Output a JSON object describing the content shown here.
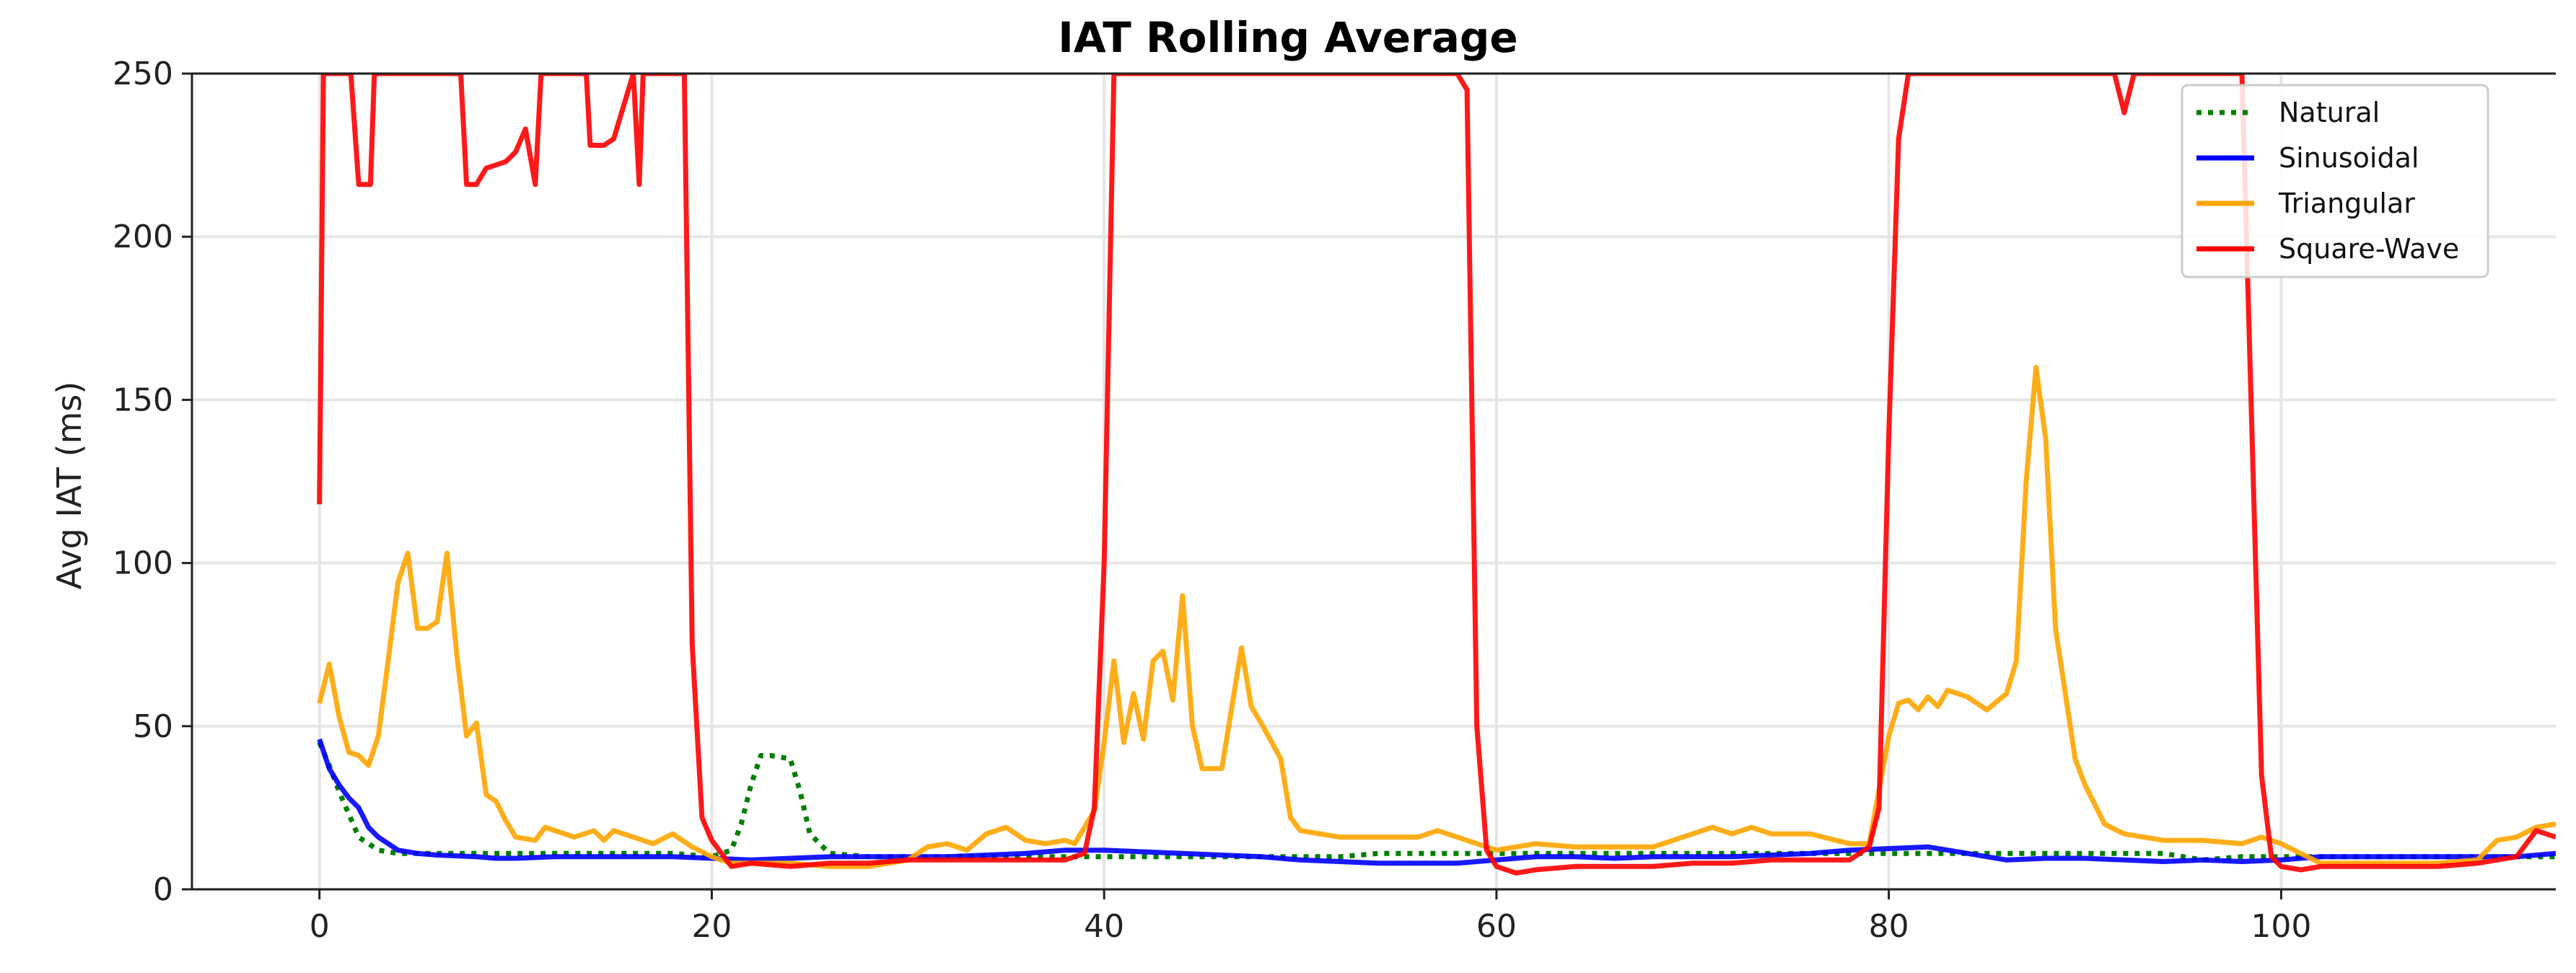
{
  "chart_data": {
    "type": "line",
    "title": "IAT Rolling Average",
    "xlabel": "",
    "ylabel": "Avg IAT (ms)",
    "xlim": [
      -6.5,
      114
    ],
    "ylim": [
      0,
      250
    ],
    "x_ticks": [
      0,
      20,
      40,
      60,
      80,
      100
    ],
    "y_ticks": [
      0,
      50,
      100,
      150,
      200,
      250
    ],
    "grid": true,
    "legend_position": "top-right",
    "series": [
      {
        "name": "Natural",
        "color": "#008000",
        "style": "dotted",
        "points": [
          [
            0,
            45
          ],
          [
            0.5,
            38
          ],
          [
            1,
            30
          ],
          [
            1.5,
            23
          ],
          [
            2,
            16
          ],
          [
            3,
            12
          ],
          [
            4,
            11
          ],
          [
            6,
            11
          ],
          [
            8,
            11
          ],
          [
            10,
            11
          ],
          [
            12,
            11
          ],
          [
            14,
            11
          ],
          [
            16,
            11
          ],
          [
            18,
            11
          ],
          [
            20,
            10
          ],
          [
            21,
            12
          ],
          [
            21.5,
            20
          ],
          [
            22,
            32
          ],
          [
            22.5,
            41
          ],
          [
            23,
            41
          ],
          [
            24,
            40
          ],
          [
            24.5,
            30
          ],
          [
            25,
            17
          ],
          [
            26,
            11
          ],
          [
            28,
            10
          ],
          [
            30,
            10
          ],
          [
            32,
            10
          ],
          [
            34,
            10
          ],
          [
            36,
            10
          ],
          [
            38,
            10
          ],
          [
            40,
            10
          ],
          [
            42,
            10
          ],
          [
            44,
            10
          ],
          [
            46,
            10
          ],
          [
            48,
            10
          ],
          [
            50,
            10
          ],
          [
            52,
            10
          ],
          [
            54,
            11
          ],
          [
            56,
            11
          ],
          [
            58,
            11
          ],
          [
            60,
            11
          ],
          [
            62,
            11
          ],
          [
            64,
            11
          ],
          [
            66,
            11
          ],
          [
            68,
            11
          ],
          [
            70,
            11
          ],
          [
            72,
            11
          ],
          [
            74,
            11
          ],
          [
            76,
            11
          ],
          [
            78,
            11
          ],
          [
            80,
            11
          ],
          [
            82,
            11
          ],
          [
            84,
            11
          ],
          [
            86,
            11
          ],
          [
            88,
            11
          ],
          [
            90,
            11
          ],
          [
            92,
            11
          ],
          [
            94,
            11
          ],
          [
            96,
            9
          ],
          [
            98,
            10
          ],
          [
            100,
            10
          ],
          [
            102,
            10
          ],
          [
            104,
            10
          ],
          [
            106,
            10
          ],
          [
            108,
            10
          ],
          [
            110,
            10
          ],
          [
            112,
            10
          ],
          [
            114,
            10
          ]
        ]
      },
      {
        "name": "Sinusoidal",
        "color": "#0000ff",
        "style": "solid",
        "points": [
          [
            0,
            46
          ],
          [
            0.5,
            37
          ],
          [
            1,
            32
          ],
          [
            1.5,
            28
          ],
          [
            2,
            25
          ],
          [
            2.5,
            19
          ],
          [
            3,
            16
          ],
          [
            4,
            12
          ],
          [
            5,
            11
          ],
          [
            6,
            10.5
          ],
          [
            8,
            10
          ],
          [
            9,
            9.5
          ],
          [
            10,
            9.5
          ],
          [
            12,
            10
          ],
          [
            14,
            10
          ],
          [
            16,
            10
          ],
          [
            18,
            10
          ],
          [
            20,
            9.5
          ],
          [
            22,
            9
          ],
          [
            24,
            9.5
          ],
          [
            26,
            10
          ],
          [
            28,
            10
          ],
          [
            30,
            10
          ],
          [
            32,
            10
          ],
          [
            34,
            10.5
          ],
          [
            36,
            11
          ],
          [
            38,
            12
          ],
          [
            40,
            12
          ],
          [
            42,
            11.5
          ],
          [
            44,
            11
          ],
          [
            46,
            10.5
          ],
          [
            48,
            10
          ],
          [
            50,
            9
          ],
          [
            52,
            8.5
          ],
          [
            54,
            8
          ],
          [
            56,
            8
          ],
          [
            58,
            8
          ],
          [
            60,
            9
          ],
          [
            62,
            10
          ],
          [
            64,
            10
          ],
          [
            66,
            9.5
          ],
          [
            68,
            10
          ],
          [
            70,
            10
          ],
          [
            72,
            10
          ],
          [
            74,
            10.5
          ],
          [
            76,
            11
          ],
          [
            78,
            12
          ],
          [
            80,
            12.5
          ],
          [
            82,
            13
          ],
          [
            84,
            11
          ],
          [
            86,
            9
          ],
          [
            88,
            9.5
          ],
          [
            90,
            9.5
          ],
          [
            92,
            9
          ],
          [
            94,
            8.5
          ],
          [
            96,
            9
          ],
          [
            98,
            8.5
          ],
          [
            100,
            9
          ],
          [
            102,
            10
          ],
          [
            104,
            10
          ],
          [
            106,
            10
          ],
          [
            108,
            10
          ],
          [
            110,
            10
          ],
          [
            112,
            10
          ],
          [
            114,
            11
          ]
        ]
      },
      {
        "name": "Triangular",
        "color": "#ffa500",
        "style": "solid",
        "points": [
          [
            0,
            57
          ],
          [
            0.5,
            69
          ],
          [
            1,
            53
          ],
          [
            1.5,
            42
          ],
          [
            2,
            41
          ],
          [
            2.5,
            38
          ],
          [
            3,
            47
          ],
          [
            3.5,
            70
          ],
          [
            4,
            94
          ],
          [
            4.5,
            103
          ],
          [
            5,
            80
          ],
          [
            5.5,
            80
          ],
          [
            6,
            82
          ],
          [
            6.5,
            103
          ],
          [
            7,
            72
          ],
          [
            7.5,
            47
          ],
          [
            8,
            51
          ],
          [
            8.5,
            29
          ],
          [
            9,
            27
          ],
          [
            9.5,
            21
          ],
          [
            10,
            16
          ],
          [
            11,
            15
          ],
          [
            11.5,
            19
          ],
          [
            12,
            18
          ],
          [
            13,
            16
          ],
          [
            14,
            18
          ],
          [
            14.5,
            15
          ],
          [
            15,
            18
          ],
          [
            16,
            16
          ],
          [
            16.5,
            15
          ],
          [
            17,
            14
          ],
          [
            18,
            17
          ],
          [
            19,
            13
          ],
          [
            20,
            10
          ],
          [
            21,
            8
          ],
          [
            22,
            8
          ],
          [
            24,
            8
          ],
          [
            26,
            7
          ],
          [
            28,
            7
          ],
          [
            30,
            9
          ],
          [
            31,
            13
          ],
          [
            32,
            14
          ],
          [
            33,
            12
          ],
          [
            34,
            17
          ],
          [
            35,
            19
          ],
          [
            36,
            15
          ],
          [
            37,
            14
          ],
          [
            38,
            15
          ],
          [
            38.5,
            14
          ],
          [
            39,
            19
          ],
          [
            39.5,
            24
          ],
          [
            40,
            45
          ],
          [
            40.5,
            70
          ],
          [
            41,
            45
          ],
          [
            41.5,
            60
          ],
          [
            42,
            46
          ],
          [
            42.5,
            70
          ],
          [
            43,
            73
          ],
          [
            43.5,
            58
          ],
          [
            44,
            90
          ],
          [
            44.5,
            50
          ],
          [
            45,
            37
          ],
          [
            46,
            37
          ],
          [
            47,
            74
          ],
          [
            47.5,
            56
          ],
          [
            48,
            51
          ],
          [
            49,
            40
          ],
          [
            49.5,
            22
          ],
          [
            50,
            18
          ],
          [
            52,
            16
          ],
          [
            54,
            16
          ],
          [
            56,
            16
          ],
          [
            57,
            18
          ],
          [
            58,
            16
          ],
          [
            59,
            14
          ],
          [
            60,
            12
          ],
          [
            62,
            14
          ],
          [
            64,
            13
          ],
          [
            66,
            13
          ],
          [
            68,
            13
          ],
          [
            70,
            17
          ],
          [
            71,
            19
          ],
          [
            72,
            17
          ],
          [
            73,
            19
          ],
          [
            74,
            17
          ],
          [
            76,
            17
          ],
          [
            78,
            14
          ],
          [
            79,
            14
          ],
          [
            80,
            47
          ],
          [
            80.5,
            57
          ],
          [
            81,
            58
          ],
          [
            81.5,
            55
          ],
          [
            82,
            59
          ],
          [
            82.5,
            56
          ],
          [
            83,
            61
          ],
          [
            84,
            59
          ],
          [
            85,
            55
          ],
          [
            86,
            60
          ],
          [
            86.5,
            70
          ],
          [
            87,
            125
          ],
          [
            87.5,
            160
          ],
          [
            88,
            138
          ],
          [
            88.5,
            80
          ],
          [
            89,
            60
          ],
          [
            89.5,
            40
          ],
          [
            90,
            32
          ],
          [
            91,
            20
          ],
          [
            92,
            17
          ],
          [
            93,
            16
          ],
          [
            94,
            15
          ],
          [
            96,
            15
          ],
          [
            98,
            14
          ],
          [
            99,
            16
          ],
          [
            100,
            14
          ],
          [
            102,
            8
          ],
          [
            104,
            8
          ],
          [
            106,
            8
          ],
          [
            108,
            8
          ],
          [
            110,
            9
          ],
          [
            111,
            15
          ],
          [
            112,
            16
          ],
          [
            113,
            19
          ],
          [
            114,
            20
          ]
        ]
      },
      {
        "name": "Square-Wave",
        "color": "#ff0000",
        "style": "solid",
        "points": [
          [
            0,
            118
          ],
          [
            0.2,
            250
          ],
          [
            1.6,
            250
          ],
          [
            2,
            216
          ],
          [
            2.6,
            216
          ],
          [
            2.8,
            250
          ],
          [
            7.2,
            250
          ],
          [
            7.5,
            216
          ],
          [
            8,
            216
          ],
          [
            8.5,
            221
          ],
          [
            9,
            222
          ],
          [
            9.5,
            223
          ],
          [
            10,
            226
          ],
          [
            10.5,
            233
          ],
          [
            11,
            216
          ],
          [
            11.3,
            250
          ],
          [
            13.6,
            250
          ],
          [
            13.8,
            228
          ],
          [
            14.5,
            228
          ],
          [
            15,
            230
          ],
          [
            15.5,
            240
          ],
          [
            16,
            250
          ],
          [
            16.3,
            216
          ],
          [
            16.5,
            250
          ],
          [
            18.6,
            250
          ],
          [
            19,
            75
          ],
          [
            19.5,
            22
          ],
          [
            20,
            15
          ],
          [
            21,
            7
          ],
          [
            22,
            8
          ],
          [
            24,
            7
          ],
          [
            26,
            8
          ],
          [
            28,
            8
          ],
          [
            30,
            9
          ],
          [
            32,
            9
          ],
          [
            34,
            9
          ],
          [
            36,
            9
          ],
          [
            38,
            9
          ],
          [
            39,
            11
          ],
          [
            39.5,
            25
          ],
          [
            40,
            100
          ],
          [
            40.5,
            250
          ],
          [
            41,
            250
          ],
          [
            58,
            250
          ],
          [
            58.5,
            245
          ],
          [
            59,
            50
          ],
          [
            59.5,
            12
          ],
          [
            60,
            7
          ],
          [
            61,
            5
          ],
          [
            62,
            6
          ],
          [
            64,
            7
          ],
          [
            66,
            7
          ],
          [
            68,
            7
          ],
          [
            70,
            8
          ],
          [
            72,
            8
          ],
          [
            74,
            9
          ],
          [
            76,
            9
          ],
          [
            78,
            9
          ],
          [
            79,
            13
          ],
          [
            79.5,
            25
          ],
          [
            80,
            140
          ],
          [
            80.5,
            230
          ],
          [
            81,
            250
          ],
          [
            89,
            250
          ],
          [
            91.5,
            250
          ],
          [
            92,
            238
          ],
          [
            92.5,
            250
          ],
          [
            98,
            250
          ],
          [
            99,
            35
          ],
          [
            99.5,
            10
          ],
          [
            100,
            7
          ],
          [
            101,
            6
          ],
          [
            102,
            7
          ],
          [
            104,
            7
          ],
          [
            106,
            7
          ],
          [
            108,
            7
          ],
          [
            110,
            8
          ],
          [
            112,
            10
          ],
          [
            113,
            18
          ],
          [
            114,
            16
          ]
        ]
      }
    ],
    "annotations": []
  }
}
